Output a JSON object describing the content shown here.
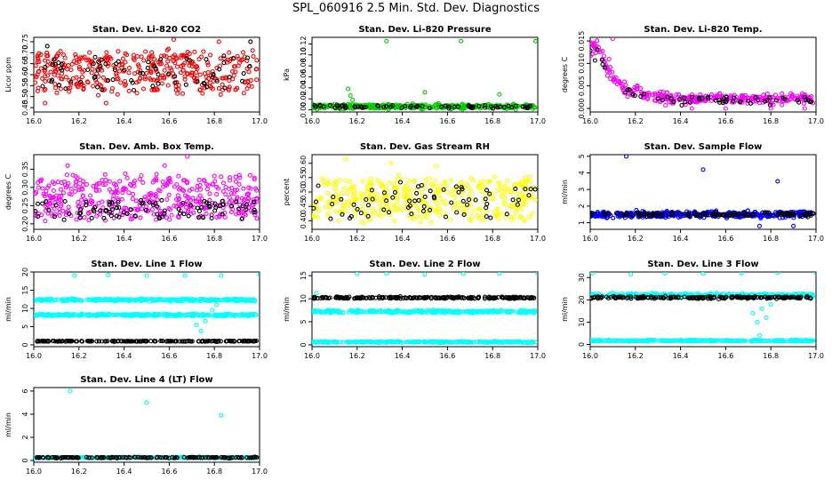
{
  "page_title": "SPL_060916  2.5 Min. Std. Dev. Diagnostics",
  "colors": {
    "red": "#ff0000",
    "green": "#00cc00",
    "magenta": "#ff00ff",
    "yellow": "#ffff00",
    "blue": "#0000ff",
    "cyan": "#00ffff",
    "black": "#000000"
  },
  "chart_data": [
    {
      "id": "co2",
      "type": "scatter",
      "title": "Stan. Dev. Li-820 CO2",
      "ylabel": "Licor ppm",
      "xlabel": "",
      "xlim": [
        16.0,
        17.0
      ],
      "ylim": [
        0.43,
        0.77
      ],
      "xticks": [
        "16.0",
        "16.2",
        "16.4",
        "16.6",
        "16.8",
        "17.0"
      ],
      "yticks": [
        0.45,
        0.5,
        0.55,
        0.6,
        0.65,
        0.7,
        0.75
      ],
      "yticklabels": [
        "0.45",
        "0.50",
        "0.55",
        "0.60",
        "0.65",
        "0.70",
        "0.75"
      ],
      "series": [
        {
          "name": "all",
          "color": "red",
          "count": 380,
          "model": "uniform",
          "params": {
            "lo": 0.5,
            "hi": 0.72
          },
          "outliers": [
            [
              16.05,
              0.47
            ],
            [
              16.32,
              0.47
            ],
            [
              16.62,
              0.76
            ],
            [
              16.82,
              0.75
            ]
          ]
        },
        {
          "name": "subset",
          "color": "black",
          "count": 70,
          "model": "uniform",
          "params": {
            "lo": 0.52,
            "hi": 0.7
          },
          "outliers": [
            [
              16.06,
              0.73
            ],
            [
              16.96,
              0.75
            ]
          ]
        }
      ]
    },
    {
      "id": "pressure",
      "type": "scatter",
      "title": "Stan. Dev. Li-820 Pressure",
      "ylabel": "kPa",
      "xlabel": "",
      "xlim": [
        16.0,
        17.0
      ],
      "ylim": [
        -0.004,
        0.132
      ],
      "xticks": [
        "16.0",
        "16.2",
        "16.4",
        "16.6",
        "16.8",
        "17.0"
      ],
      "yticks": [
        0.0,
        0.02,
        0.04,
        0.06,
        0.08,
        0.1,
        0.12
      ],
      "yticklabels": [
        "0.00",
        "0.02",
        "0.04",
        "0.06",
        "0.08",
        "0.10",
        "0.12"
      ],
      "series": [
        {
          "name": "all",
          "color": "green",
          "count": 350,
          "model": "band",
          "params": {
            "center": 0.006,
            "spread": 0.004
          },
          "outliers": [
            [
              16.16,
              0.038
            ],
            [
              16.17,
              0.026
            ],
            [
              16.18,
              0.018
            ],
            [
              16.33,
              0.125
            ],
            [
              16.5,
              0.032
            ],
            [
              16.66,
              0.125
            ],
            [
              16.83,
              0.028
            ],
            [
              16.99,
              0.125
            ]
          ]
        },
        {
          "name": "subset",
          "color": "black",
          "count": 70,
          "model": "band",
          "params": {
            "center": 0.006,
            "spread": 0.003
          },
          "outliers": []
        }
      ]
    },
    {
      "id": "temp",
      "type": "scatter",
      "title": "Stan. Dev. Li-820 Temp.",
      "ylabel": "degrees C",
      "xlabel": "",
      "xlim": [
        16.0,
        17.0
      ],
      "ylim": [
        -0.0008,
        0.0158
      ],
      "xticks": [
        "16.0",
        "16.2",
        "16.4",
        "16.6",
        "16.8",
        "17.0"
      ],
      "yticks": [
        0.0,
        0.005,
        0.01,
        0.015
      ],
      "yticklabels": [
        "0.000",
        "0.005",
        "0.010",
        "0.015"
      ],
      "series": [
        {
          "name": "all",
          "color": "magenta",
          "count": 320,
          "model": "decay",
          "params": {
            "start": 0.0135,
            "floor": 0.0022,
            "rate": 14,
            "noise": 0.0016
          },
          "outliers": [
            [
              16.1,
              0.0155
            ],
            [
              16.45,
              0.0
            ],
            [
              16.6,
              0.0
            ],
            [
              16.8,
              0.0
            ],
            [
              16.95,
              0.0
            ]
          ]
        },
        {
          "name": "subset",
          "color": "black",
          "count": 60,
          "model": "decay",
          "params": {
            "start": 0.0125,
            "floor": 0.0018,
            "rate": 14,
            "noise": 0.0012
          },
          "outliers": []
        }
      ]
    },
    {
      "id": "boxtemp",
      "type": "scatter",
      "title": "Stan. Dev. Amb. Box Temp.",
      "ylabel": "degrees C",
      "xlabel": "",
      "xlim": [
        16.0,
        17.0
      ],
      "ylim": [
        0.185,
        0.39
      ],
      "xticks": [
        "16.0",
        "16.2",
        "16.4",
        "16.6",
        "16.8",
        "17.0"
      ],
      "yticks": [
        0.2,
        0.25,
        0.3,
        0.35
      ],
      "yticklabels": [
        "0.20",
        "0.25",
        "0.30",
        "0.35"
      ],
      "series": [
        {
          "name": "all",
          "color": "magenta",
          "count": 420,
          "model": "uniform",
          "params": {
            "lo": 0.205,
            "hi": 0.34
          },
          "outliers": [
            [
              16.15,
              0.36
            ],
            [
              16.68,
              0.385
            ],
            [
              16.58,
              0.36
            ]
          ]
        },
        {
          "name": "subset",
          "color": "black",
          "count": 90,
          "model": "uniform",
          "params": {
            "lo": 0.21,
            "hi": 0.27
          },
          "outliers": []
        }
      ]
    },
    {
      "id": "rh",
      "type": "scatter",
      "title": "Stan. Dev. Gas Stream RH",
      "ylabel": "percent",
      "xlabel": "",
      "xlim": [
        16.0,
        17.0
      ],
      "ylim": [
        0.37,
        0.63
      ],
      "xticks": [
        "16.0",
        "16.2",
        "16.4",
        "16.6",
        "16.8",
        "17.0"
      ],
      "yticks": [
        0.4,
        0.45,
        0.5,
        0.55,
        0.6
      ],
      "yticklabels": [
        "0.40",
        "0.45",
        "0.50",
        "0.55",
        "0.60"
      ],
      "series": [
        {
          "name": "all",
          "color": "yellow",
          "count": 420,
          "model": "uniform",
          "params": {
            "lo": 0.39,
            "hi": 0.56
          },
          "outliers": [
            [
              16.15,
              0.615
            ],
            [
              16.35,
              0.6
            ],
            [
              16.55,
              0.59
            ]
          ]
        },
        {
          "name": "subset",
          "color": "black",
          "count": 70,
          "model": "uniform",
          "params": {
            "lo": 0.4,
            "hi": 0.54
          },
          "outliers": []
        }
      ]
    },
    {
      "id": "sampleflow",
      "type": "scatter",
      "title": "Stan. Dev. Sample Flow",
      "ylabel": "ml/min",
      "xlabel": "",
      "xlim": [
        16.0,
        17.0
      ],
      "ylim": [
        0.6,
        5.1
      ],
      "xticks": [
        "16.0",
        "16.2",
        "16.4",
        "16.6",
        "16.8",
        "17.0"
      ],
      "yticks": [
        1,
        2,
        3,
        4,
        5
      ],
      "yticklabels": [
        "1",
        "2",
        "3",
        "4",
        "5"
      ],
      "series": [
        {
          "name": "all",
          "color": "blue",
          "count": 420,
          "model": "band",
          "params": {
            "center": 1.5,
            "spread": 0.18
          },
          "outliers": [
            [
              16.16,
              5.0
            ],
            [
              16.5,
              4.2
            ],
            [
              16.83,
              3.5
            ],
            [
              16.75,
              0.8
            ],
            [
              16.9,
              0.8
            ]
          ]
        },
        {
          "name": "subset",
          "color": "black",
          "count": 110,
          "model": "band",
          "params": {
            "center": 1.5,
            "spread": 0.1
          },
          "outliers": []
        }
      ]
    },
    {
      "id": "line1",
      "type": "scatter",
      "title": "Stan. Dev. Line 1 Flow",
      "ylabel": "ml/min",
      "xlabel": "",
      "xlim": [
        16.0,
        17.0
      ],
      "ylim": [
        -0.5,
        20
      ],
      "xticks": [
        "16.0",
        "16.2",
        "16.4",
        "16.6",
        "16.8",
        "17.0"
      ],
      "yticks": [
        0,
        5,
        10,
        15,
        20
      ],
      "yticklabels": [
        "0",
        "5",
        "10",
        "15",
        "20"
      ],
      "series": [
        {
          "name": "band-high",
          "color": "cyan",
          "count": 300,
          "model": "band",
          "params": {
            "center": 12.3,
            "spread": 0.3
          },
          "outliers": [
            [
              16.18,
              19.0
            ],
            [
              16.33,
              19.2
            ],
            [
              16.5,
              19.0
            ],
            [
              16.67,
              19.0
            ],
            [
              16.83,
              19.0
            ],
            [
              17.0,
              19.3
            ]
          ]
        },
        {
          "name": "band-mid",
          "color": "cyan",
          "count": 300,
          "model": "band",
          "params": {
            "center": 8.2,
            "spread": 0.3
          },
          "outliers": [
            [
              16.72,
              5.5
            ],
            [
              16.74,
              3.8
            ],
            [
              16.76,
              6.5
            ],
            [
              16.79,
              9.5
            ],
            [
              16.81,
              11.0
            ]
          ]
        },
        {
          "name": "band-low",
          "color": "black",
          "count": 180,
          "model": "band",
          "params": {
            "center": 1.0,
            "spread": 0.1
          },
          "outliers": []
        }
      ]
    },
    {
      "id": "line2",
      "type": "scatter",
      "title": "Stan. Dev. Line 2 Flow",
      "ylabel": "ml/min",
      "xlabel": "",
      "xlim": [
        16.0,
        17.0
      ],
      "ylim": [
        -0.4,
        15.8
      ],
      "xticks": [
        "16.0",
        "16.2",
        "16.4",
        "16.6",
        "16.8",
        "17.0"
      ],
      "yticks": [
        0,
        5,
        10,
        15
      ],
      "yticklabels": [
        "0",
        "5",
        "10",
        "15"
      ],
      "series": [
        {
          "name": "band-high",
          "color": "black",
          "count": 220,
          "model": "band",
          "params": {
            "center": 10.2,
            "spread": 0.2
          },
          "outliers": []
        },
        {
          "name": "band-mid",
          "color": "cyan",
          "count": 300,
          "model": "band",
          "params": {
            "center": 7.2,
            "spread": 0.3
          },
          "outliers": [
            [
              16.02,
              11.2
            ],
            [
              16.2,
              15.4
            ],
            [
              16.33,
              15.5
            ],
            [
              16.5,
              15.3
            ],
            [
              16.67,
              15.4
            ],
            [
              16.83,
              15.5
            ],
            [
              17.0,
              15.5
            ]
          ]
        },
        {
          "name": "band-low",
          "color": "cyan",
          "count": 300,
          "model": "band",
          "params": {
            "center": 0.6,
            "spread": 0.15
          },
          "outliers": []
        }
      ]
    },
    {
      "id": "line3",
      "type": "scatter",
      "title": "Stan. Dev. Line 3 Flow",
      "ylabel": "ml/min",
      "xlabel": "",
      "xlim": [
        16.0,
        17.0
      ],
      "ylim": [
        -1,
        32.5
      ],
      "xticks": [
        "16.0",
        "16.2",
        "16.4",
        "16.6",
        "16.8",
        "17.0"
      ],
      "yticks": [
        0,
        10,
        20,
        30
      ],
      "yticklabels": [
        "0",
        "10",
        "20",
        "30"
      ],
      "series": [
        {
          "name": "band-high",
          "color": "cyan",
          "count": 300,
          "model": "band",
          "params": {
            "center": 22.0,
            "spread": 0.8
          },
          "outliers": [
            [
              16.01,
              32.0
            ],
            [
              16.18,
              31.5
            ],
            [
              16.33,
              32.0
            ],
            [
              16.5,
              31.8
            ],
            [
              16.67,
              32.0
            ],
            [
              16.83,
              32.2
            ],
            [
              17.0,
              32.0
            ],
            [
              16.72,
              14.0
            ],
            [
              16.74,
              10.0
            ],
            [
              16.76,
              16.0
            ],
            [
              16.78,
              12.0
            ],
            [
              16.8,
              18.0
            ],
            [
              16.75,
              4.0
            ]
          ]
        },
        {
          "name": "band-mid",
          "color": "black",
          "count": 200,
          "model": "band",
          "params": {
            "center": 21.0,
            "spread": 0.5
          },
          "outliers": []
        },
        {
          "name": "band-low",
          "color": "cyan",
          "count": 300,
          "model": "band",
          "params": {
            "center": 1.7,
            "spread": 0.3
          },
          "outliers": []
        }
      ]
    },
    {
      "id": "line4",
      "type": "scatter",
      "title": "Stan. Dev. Line 4 (LT) Flow",
      "ylabel": "ml/min",
      "xlabel": "",
      "xlim": [
        16.0,
        17.0
      ],
      "ylim": [
        -0.15,
        6.3
      ],
      "xticks": [
        "16.0",
        "16.2",
        "16.4",
        "16.6",
        "16.8",
        "17.0"
      ],
      "yticks": [
        0,
        2,
        4,
        6
      ],
      "yticklabels": [
        "0",
        "2",
        "4",
        "6"
      ],
      "series": [
        {
          "name": "all",
          "color": "cyan",
          "count": 300,
          "model": "band",
          "params": {
            "center": 0.25,
            "spread": 0.05
          },
          "outliers": [
            [
              16.16,
              6.0
            ],
            [
              16.5,
              5.0
            ],
            [
              16.83,
              3.9
            ]
          ]
        },
        {
          "name": "subset",
          "color": "black",
          "count": 150,
          "model": "band",
          "params": {
            "center": 0.25,
            "spread": 0.04
          },
          "outliers": []
        }
      ]
    }
  ]
}
